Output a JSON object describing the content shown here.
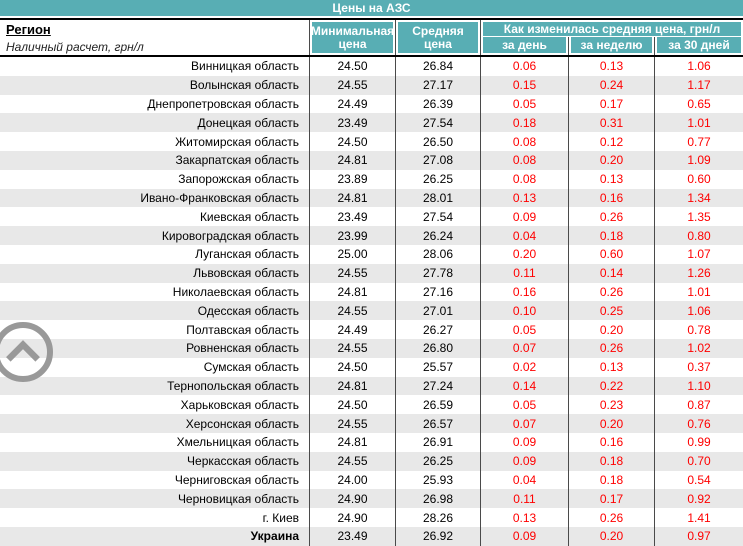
{
  "title": "Цены на АЗС",
  "header": {
    "region_label": "Регион",
    "region_sublabel": "Наличный расчет, грн/л",
    "col_min": "Минимальная цена",
    "col_avg": "Средняя цена",
    "col_change_group": "Как изменилась средняя цена, грн/л",
    "col_day": "за день",
    "col_week": "за неделю",
    "col_month": "за 30 дней"
  },
  "colors": {
    "accent_teal": "#58aeb4",
    "change_red": "#ff0000",
    "stripe_gray": "#e8e8e8",
    "icon_gray": "#999999",
    "border_dark": "#4a4a4a"
  },
  "icons": {
    "scroll_top": "chevron-up-in-circle"
  },
  "table": {
    "rows": [
      {
        "region": "Винницкая область",
        "min": "24.50",
        "avg": "26.84",
        "day": "0.06",
        "week": "0.13",
        "month": "1.06"
      },
      {
        "region": "Волынская область",
        "min": "24.55",
        "avg": "27.17",
        "day": "0.15",
        "week": "0.24",
        "month": "1.17"
      },
      {
        "region": "Днепропетровская область",
        "min": "24.49",
        "avg": "26.39",
        "day": "0.05",
        "week": "0.17",
        "month": "0.65"
      },
      {
        "region": "Донецкая область",
        "min": "23.49",
        "avg": "27.54",
        "day": "0.18",
        "week": "0.31",
        "month": "1.01"
      },
      {
        "region": "Житомирская область",
        "min": "24.50",
        "avg": "26.50",
        "day": "0.08",
        "week": "0.12",
        "month": "0.77"
      },
      {
        "region": "Закарпатская область",
        "min": "24.81",
        "avg": "27.08",
        "day": "0.08",
        "week": "0.20",
        "month": "1.09"
      },
      {
        "region": "Запорожская область",
        "min": "23.89",
        "avg": "26.25",
        "day": "0.08",
        "week": "0.13",
        "month": "0.60"
      },
      {
        "region": "Ивано-Франковская область",
        "min": "24.81",
        "avg": "28.01",
        "day": "0.13",
        "week": "0.16",
        "month": "1.34"
      },
      {
        "region": "Киевская область",
        "min": "23.49",
        "avg": "27.54",
        "day": "0.09",
        "week": "0.26",
        "month": "1.35"
      },
      {
        "region": "Кировоградская область",
        "min": "23.99",
        "avg": "26.24",
        "day": "0.04",
        "week": "0.18",
        "month": "0.80"
      },
      {
        "region": "Луганская область",
        "min": "25.00",
        "avg": "28.06",
        "day": "0.20",
        "week": "0.60",
        "month": "1.07"
      },
      {
        "region": "Львовская область",
        "min": "24.55",
        "avg": "27.78",
        "day": "0.11",
        "week": "0.14",
        "month": "1.26"
      },
      {
        "region": "Николаевская область",
        "min": "24.81",
        "avg": "27.16",
        "day": "0.16",
        "week": "0.26",
        "month": "1.01"
      },
      {
        "region": "Одесская область",
        "min": "24.55",
        "avg": "27.01",
        "day": "0.10",
        "week": "0.25",
        "month": "1.06"
      },
      {
        "region": "Полтавская область",
        "min": "24.49",
        "avg": "26.27",
        "day": "0.05",
        "week": "0.20",
        "month": "0.78"
      },
      {
        "region": "Ровненская область",
        "min": "24.55",
        "avg": "26.80",
        "day": "0.07",
        "week": "0.26",
        "month": "1.02"
      },
      {
        "region": "Сумская область",
        "min": "24.50",
        "avg": "25.57",
        "day": "0.02",
        "week": "0.13",
        "month": "0.37"
      },
      {
        "region": "Тернопольская область",
        "min": "24.81",
        "avg": "27.24",
        "day": "0.14",
        "week": "0.22",
        "month": "1.10"
      },
      {
        "region": "Харьковская область",
        "min": "24.50",
        "avg": "26.59",
        "day": "0.05",
        "week": "0.23",
        "month": "0.87"
      },
      {
        "region": "Херсонская область",
        "min": "24.55",
        "avg": "26.57",
        "day": "0.07",
        "week": "0.20",
        "month": "0.76"
      },
      {
        "region": "Хмельницкая область",
        "min": "24.81",
        "avg": "26.91",
        "day": "0.09",
        "week": "0.16",
        "month": "0.99"
      },
      {
        "region": "Черкасская область",
        "min": "24.55",
        "avg": "26.25",
        "day": "0.09",
        "week": "0.18",
        "month": "0.70"
      },
      {
        "region": "Черниговская область",
        "min": "24.00",
        "avg": "25.93",
        "day": "0.04",
        "week": "0.18",
        "month": "0.54"
      },
      {
        "region": "Черновицкая область",
        "min": "24.90",
        "avg": "26.98",
        "day": "0.11",
        "week": "0.17",
        "month": "0.92"
      },
      {
        "region": "г. Киев",
        "min": "24.90",
        "avg": "28.26",
        "day": "0.13",
        "week": "0.26",
        "month": "1.41"
      }
    ],
    "total_row": {
      "region": "Украина",
      "min": "23.49",
      "avg": "26.92",
      "day": "0.09",
      "week": "0.20",
      "month": "0.97"
    }
  }
}
